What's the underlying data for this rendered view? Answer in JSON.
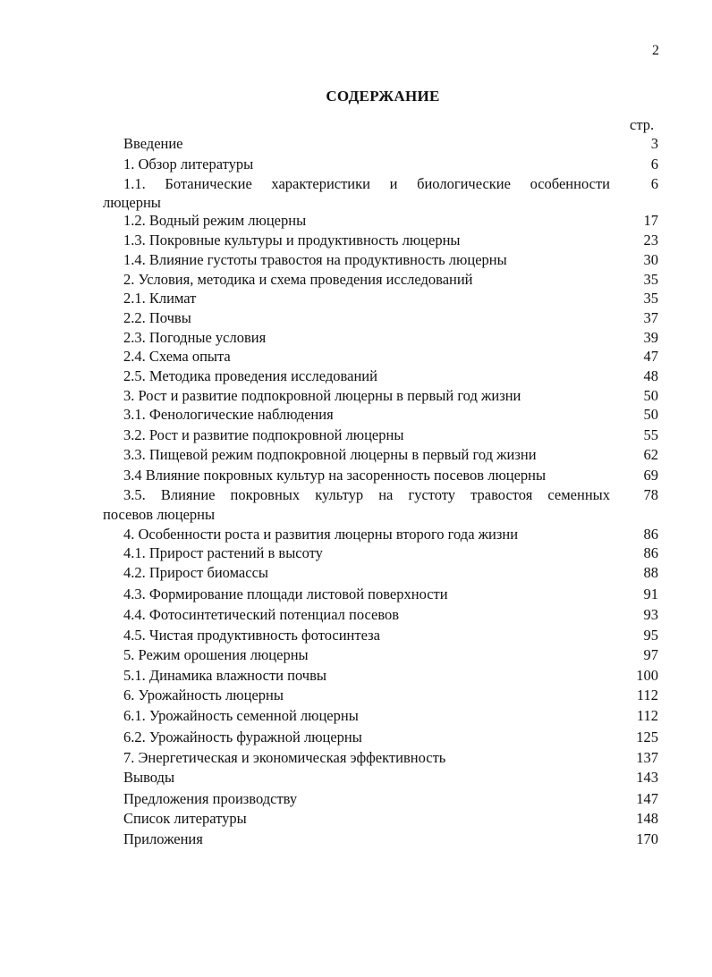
{
  "page_number": "2",
  "title": "СОДЕРЖАНИЕ",
  "page_column_label": "стр.",
  "entries": [
    {
      "text": "Введение",
      "page": "3"
    },
    {
      "text": "1. Обзор литературы",
      "page": "6"
    },
    {
      "text": "1.1. Ботанические характеристики и биологические особенности",
      "continuation": "люцерны",
      "page": "6"
    },
    {
      "text": "1.2. Водный режим люцерны",
      "page": "17"
    },
    {
      "text": "1.3. Покровные культуры и продуктивность люцерны",
      "page": "23"
    },
    {
      "text": "1.4. Влияние густоты травостоя на продуктивность люцерны",
      "page": "30"
    },
    {
      "text": "2. Условия, методика и схема проведения исследований",
      "page": "35"
    },
    {
      "text": "2.1. Климат",
      "page": "35"
    },
    {
      "text": "2.2. Почвы",
      "page": "37"
    },
    {
      "text": "2.3. Погодные условия",
      "page": "39"
    },
    {
      "text": "2.4. Схема опыта",
      "page": "47"
    },
    {
      "text": "2.5. Методика проведения исследований",
      "page": "48"
    },
    {
      "text": "3. Рост и развитие подпокровной люцерны в первый год жизни",
      "page": "50"
    },
    {
      "text": "3.1. Фенологические наблюдения",
      "page": "50"
    },
    {
      "text": "3.2. Рост и развитие подпокровной люцерны",
      "page": "55"
    },
    {
      "text": "3.3. Пищевой режим подпокровной люцерны в первый год жизни",
      "page": "62"
    },
    {
      "text": "3.4 Влияние покровных культур на засоренность посевов люцерны",
      "page": "69"
    },
    {
      "text": "3.5. Влияние покровных культур на густоту травостоя семенных",
      "continuation": "посевов люцерны",
      "page": "78"
    },
    {
      "text": "4. Особенности роста и развития люцерны второго года жизни",
      "page": "86"
    },
    {
      "text": "4.1. Прирост растений в высоту",
      "page": "86"
    },
    {
      "text": "4.2. Прирост биомассы",
      "page": "88"
    },
    {
      "text": "4.3. Формирование площади листовой поверхности",
      "page": "91"
    },
    {
      "text": "4.4. Фотосинтетический потенциал посевов",
      "page": "93"
    },
    {
      "text": "4.5. Чистая продуктивность фотосинтеза",
      "page": "95"
    },
    {
      "text": "5.  Режим орошения люцерны",
      "page": "97"
    },
    {
      "text": "5.1. Динамика влажности почвы",
      "page": "100"
    },
    {
      "text": "6. Урожайность люцерны",
      "page": "112"
    },
    {
      "text": "6.1. Урожайность семенной люцерны",
      "page": "112"
    },
    {
      "text": "6.2. Урожайность фуражной люцерны",
      "page": "125"
    },
    {
      "text": "7.  Энергетическая и экономическая эффективность",
      "page": "137"
    },
    {
      "text": "Выводы",
      "page": "143"
    },
    {
      "text": "Предложения производству",
      "page": "147"
    },
    {
      "text": "Список литературы",
      "page": "148"
    },
    {
      "text": "Приложения",
      "page": "170"
    }
  ]
}
